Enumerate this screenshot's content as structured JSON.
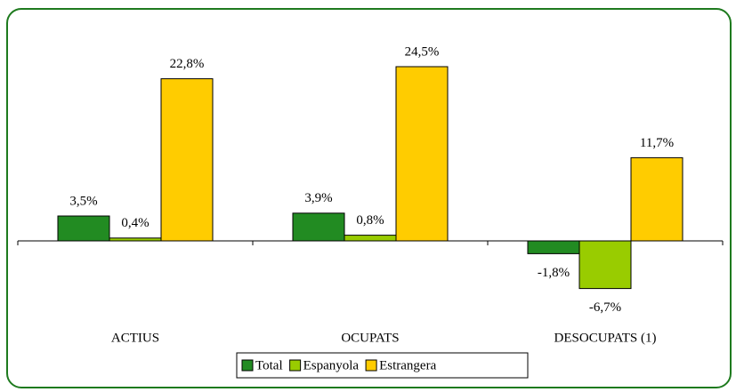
{
  "chart_data": {
    "type": "bar",
    "categories": [
      "ACTIUS",
      "OCUPATS",
      "DESOCUPATS (1)"
    ],
    "series": [
      {
        "name": "Total",
        "color": "#228b22",
        "values": [
          3.5,
          3.9,
          -1.8
        ],
        "value_labels": [
          "3,5%",
          "3,9%",
          "-1,8%"
        ]
      },
      {
        "name": "Espanyola",
        "color": "#99cc00",
        "values": [
          0.4,
          0.8,
          -6.7
        ],
        "value_labels": [
          "0,4%",
          "0,8%",
          "-6,7%"
        ]
      },
      {
        "name": "Estrangera",
        "color": "#ffcc00",
        "values": [
          22.8,
          24.5,
          11.7
        ],
        "value_labels": [
          "22,8%",
          "24,5%",
          "11,7%"
        ]
      }
    ],
    "ylim": [
      -10,
      30
    ],
    "legend": "bottom"
  }
}
